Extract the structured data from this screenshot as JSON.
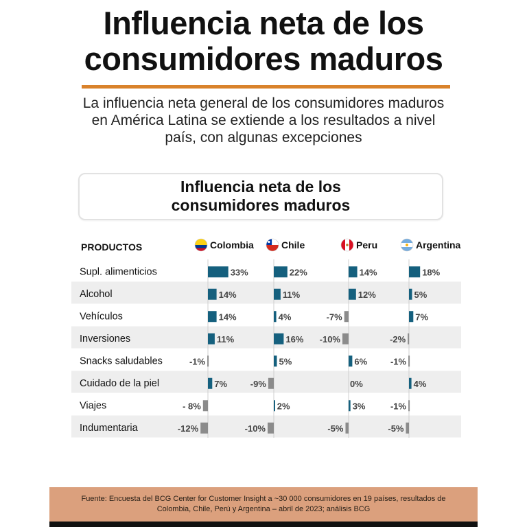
{
  "header": {
    "title_line1": "Influencia neta de los",
    "title_line2": "consumidores maduros",
    "subtitle_line1": "La influencia neta general de los consumidores maduros",
    "subtitle_line2": "en América Latina se extiende a los resultados a nivel",
    "subtitle_line3": "país, con algunas excepciones",
    "accent_color": "#d9822b"
  },
  "box": {
    "title_line1": "Influencia neta de los",
    "title_line2": "consumidores maduros"
  },
  "chart_data": {
    "type": "bar",
    "title": "Influencia neta de los consumidores maduros",
    "row_header": "PRODUCTOS",
    "categories": [
      "Supl. alimenticios",
      "Alcohol",
      "Vehículos",
      "Inversiones",
      "Snacks saludables",
      "Cuidado de la piel",
      "Viajes",
      "Indumentaria"
    ],
    "series": [
      {
        "name": "Colombia",
        "values": [
          33,
          14,
          14,
          11,
          -1,
          7,
          -8,
          -12
        ],
        "labels": [
          "33%",
          "14%",
          "14%",
          "11%",
          "-1%",
          "7%",
          "- 8%",
          "-12%"
        ]
      },
      {
        "name": "Chile",
        "values": [
          22,
          11,
          4,
          16,
          5,
          -9,
          2,
          -10
        ],
        "labels": [
          "22%",
          "11%",
          "4%",
          "16%",
          "5%",
          "-9%",
          "2%",
          "-10%"
        ]
      },
      {
        "name": "Peru",
        "values": [
          14,
          12,
          -7,
          -10,
          6,
          0,
          3,
          -5
        ],
        "labels": [
          "14%",
          "12%",
          "-7%",
          "-10%",
          "6%",
          "0%",
          "3%",
          "-5%"
        ]
      },
      {
        "name": "Argentina",
        "values": [
          18,
          5,
          7,
          -2,
          -1,
          4,
          -1,
          -5
        ],
        "labels": [
          "18%",
          "5%",
          "7%",
          "-2%",
          "-1%",
          "4%",
          "-1%",
          "-5%"
        ]
      }
    ],
    "positive_color": "#15607e",
    "negative_color": "#8b8b8b",
    "stripe_color": "#eeeeee"
  },
  "footer": {
    "line1": "Fuente: Encuesta del BCG Center for Customer Insight a ~30 000 consumidores en 19 países, resultados de",
    "line2": "Colombia, Chile, Perú y Argentina – abril de 2023; análisis BCG",
    "background": "#dba07d"
  }
}
